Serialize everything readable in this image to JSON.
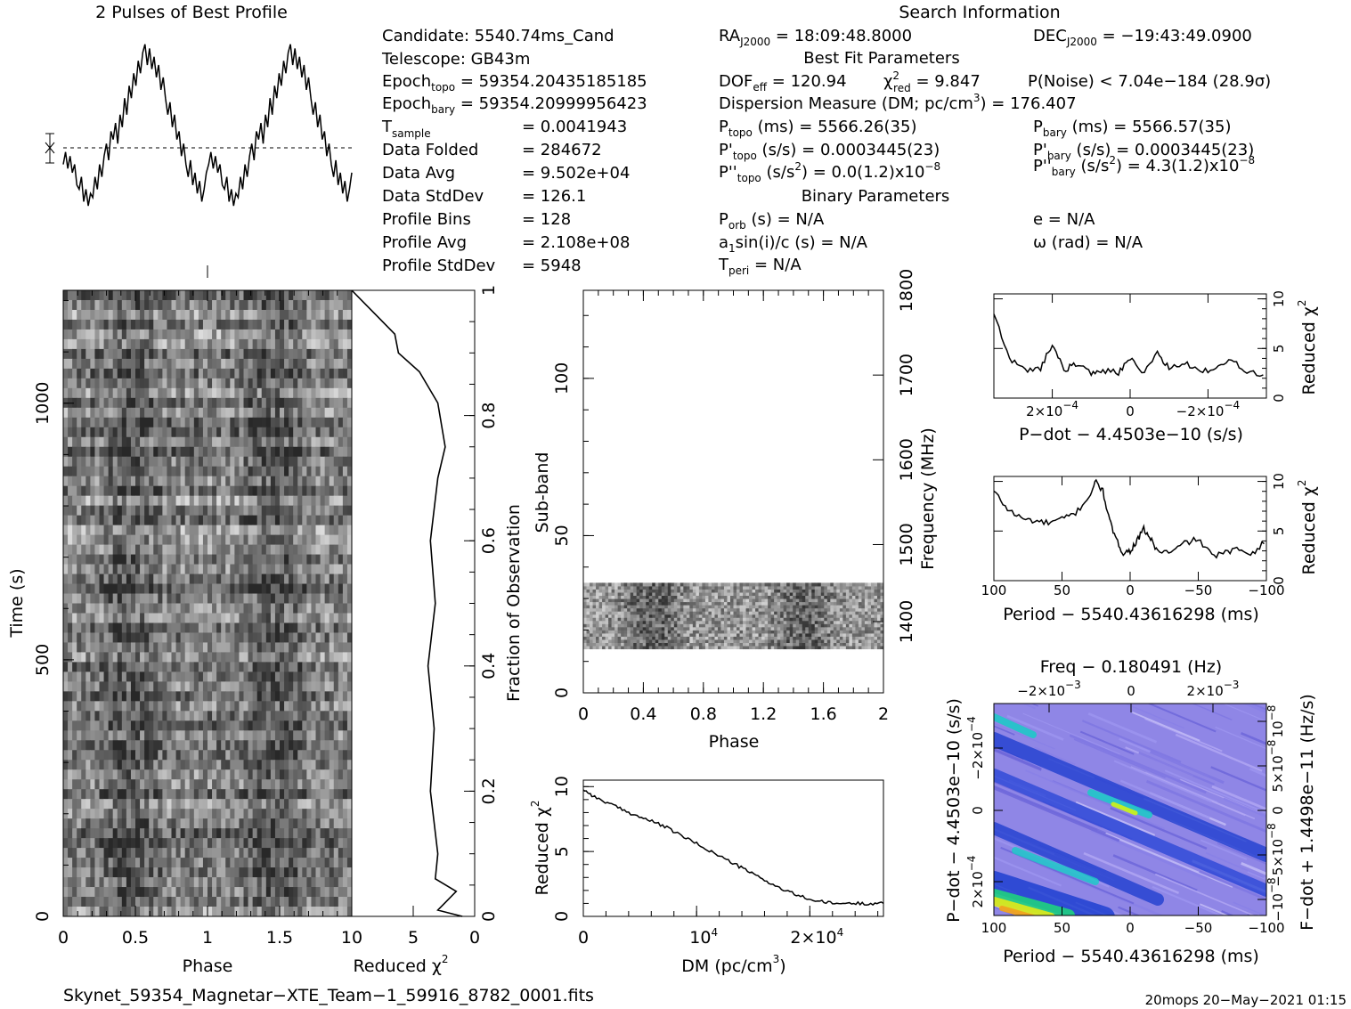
{
  "header": {
    "profile_title": "2 Pulses of Best Profile",
    "search_title": "Search Information"
  },
  "candidate_info": {
    "candidate": "Candidate:  5540.74ms_Cand",
    "telescope": "Telescope:  GB43m",
    "epoch_topo_label": "Epoch",
    "epoch_topo_sub": "topo",
    "epoch_topo_value": " = 59354.20435185185",
    "epoch_bary_label": "Epoch",
    "epoch_bary_sub": "bary",
    "epoch_bary_value": " = 59354.20999956423",
    "tsample_label": "T",
    "tsample_sub": "sample",
    "tsample_value": "=  0.0041943",
    "data_folded_label": "Data Folded",
    "data_folded_value": "=  284672",
    "data_avg_label": "Data Avg",
    "data_avg_value": "=  9.502e+04",
    "data_stddev_label": "Data StdDev",
    "data_stddev_value": "=  126.1",
    "profile_bins_label": "Profile Bins",
    "profile_bins_value": "=  128",
    "profile_avg_label": "Profile Avg",
    "profile_avg_value": "=  2.108e+08",
    "profile_stddev_label": "Profile StdDev",
    "profile_stddev_value": "=  5948"
  },
  "search_info": {
    "ra_label": "RA",
    "ra_sub": "J2000",
    "ra_value": " = 18:09:48.8000",
    "dec_label": "DEC",
    "dec_sub": "J2000",
    "dec_value": " = −19:43:49.0900",
    "best_fit_title": "Best Fit Parameters",
    "dof_label": "DOF",
    "dof_sub": "eff",
    "dof_value": " = 120.94",
    "chi_label": "χ",
    "chi_sup": "2",
    "chi_sub": "red",
    "chi_value": " = 9.847",
    "pnoise": "P(Noise) < 7.04e−184  (28.9σ)",
    "dm_line": "Dispersion Measure (DM; pc/cm",
    "dm_sup": "3",
    "dm_value": ") = 176.407",
    "ptopo_label": "P",
    "ptopo_sub": "topo",
    "ptopo_value": " (ms) =  5566.26(35)",
    "pbary_label": "P",
    "pbary_sub": "bary",
    "pbary_value": " (ms) =  5566.57(35)",
    "pdtopo_label": "P'",
    "pdtopo_sub": "topo",
    "pdtopo_value": " (s/s) =  0.0003445(23)",
    "pdbary_label": "P'",
    "pdbary_sub": "bary",
    "pdbary_value": " (s/s) =  0.0003445(23)",
    "pddtopo_label": "P''",
    "pddtopo_sub": "topo",
    "pddtopo_value": " (s/s",
    "pddtopo_sup": "2",
    "pddtopo_value2": ") = 0.0(1.2)x10",
    "pddtopo_exp": "−8",
    "pddbary_label": "P''",
    "pddbary_sub": "bary",
    "pddbary_value": " (s/s",
    "pddbary_sup": "2",
    "pddbary_value2": ") =  4.3(1.2)x10",
    "pddbary_exp": "−8",
    "binary_title": "Binary Parameters",
    "porb_label": "P",
    "porb_sub": "orb",
    "porb_value": " (s) = N/A",
    "ecc": "e = N/A",
    "a1sini_label": "a",
    "a1sini_sub": "1",
    "a1sini_value": "sin(i)/c (s) = N/A",
    "omega": "ω (rad) = N/A",
    "tperi_label": "T",
    "tperi_sub": "peri",
    "tperi_value": " = N/A"
  },
  "footer": {
    "filename": "Skynet_59354_Magnetar−XTE_Team−1_59916_8782_0001.fits",
    "stamp": "20mops 20−May−2021 01:15"
  },
  "colors": {
    "axis": "#000000",
    "background": "#ffffff"
  },
  "chart_data": [
    {
      "name": "profile",
      "type": "line",
      "title": "2 Pulses of Best Profile",
      "x_range": [
        0,
        2
      ],
      "values": [
        -2.0,
        -0.5,
        -2.5,
        -1.0,
        -3.0,
        -2.0,
        -4.5,
        -5.0,
        -3.5,
        -6.5,
        -5.0,
        -7.0,
        -5.5,
        -6.0,
        -3.5,
        -5.0,
        -2.0,
        -3.5,
        -1.0,
        0.5,
        -1.5,
        2.0,
        1.0,
        3.0,
        0.5,
        4.0,
        2.5,
        6.0,
        4.0,
        7.5,
        6.0,
        9.0,
        7.5,
        10.5,
        9.0,
        11.5,
        12.5,
        10.0,
        12.0,
        9.5,
        11.0,
        8.5,
        10.0,
        7.0,
        8.5,
        6.0,
        4.0,
        5.5,
        2.5,
        4.0,
        1.0,
        2.0,
        -1.0,
        0.5,
        -2.0,
        -3.5,
        -1.5,
        -4.5,
        -3.0,
        -5.5,
        -4.0,
        -6.5,
        -5.0,
        -3.0,
        -2.0,
        -0.5,
        -2.5,
        -1.0,
        -3.0,
        -2.0,
        -4.5,
        -5.0,
        -3.5,
        -6.5,
        -5.0,
        -7.0,
        -5.5,
        -6.0,
        -3.5,
        -5.0,
        -2.0,
        -3.5,
        -1.0,
        0.5,
        -1.5,
        2.0,
        1.0,
        3.0,
        0.5,
        4.0,
        2.5,
        6.0,
        4.0,
        7.5,
        6.0,
        9.0,
        7.5,
        10.5,
        9.0,
        11.5,
        12.5,
        10.0,
        12.0,
        9.5,
        11.0,
        8.5,
        10.0,
        7.0,
        8.5,
        6.0,
        4.0,
        5.5,
        2.5,
        4.0,
        1.0,
        2.0,
        -1.0,
        0.5,
        -2.0,
        -3.5,
        -1.5,
        -4.5,
        -3.0,
        -5.5,
        -4.0,
        -6.5,
        -5.0,
        -3.0
      ]
    },
    {
      "name": "time-vs-phase",
      "type": "heatmap",
      "xlabel": "Phase",
      "ylabel": "Time (s)",
      "xlim": [
        0,
        2
      ],
      "ylim": [
        0,
        1220
      ],
      "x_ticks": [
        "0",
        "0.5",
        "1",
        "1.5"
      ],
      "y_ticks": [
        "0",
        "500",
        "1000"
      ]
    },
    {
      "name": "reduced-chi2-vs-time",
      "type": "line",
      "xlabel": "Reduced χ",
      "xlabel_sup": "2",
      "ylabel": "Fraction of Observation",
      "xlim": [
        10,
        0
      ],
      "ylim": [
        0,
        1
      ],
      "x_ticks": [
        "10",
        "5",
        "0"
      ],
      "y_ticks": [
        "0",
        "0.2",
        "0.4",
        "0.6",
        "0.8",
        "1"
      ],
      "points": [
        [
          1.0,
          0.0
        ],
        [
          3.0,
          0.01
        ],
        [
          1.5,
          0.04
        ],
        [
          3.2,
          0.06
        ],
        [
          3.0,
          0.1
        ],
        [
          3.6,
          0.2
        ],
        [
          3.3,
          0.3
        ],
        [
          3.8,
          0.4
        ],
        [
          3.2,
          0.5
        ],
        [
          3.6,
          0.6
        ],
        [
          3.0,
          0.7
        ],
        [
          2.4,
          0.75
        ],
        [
          3.0,
          0.82
        ],
        [
          4.5,
          0.87
        ],
        [
          6.2,
          0.9
        ],
        [
          6.5,
          0.93
        ],
        [
          8.0,
          0.96
        ],
        [
          9.0,
          0.98
        ],
        [
          10.0,
          1.0
        ]
      ]
    },
    {
      "name": "subband-vs-phase",
      "type": "heatmap",
      "xlabel": "Phase",
      "ylabel": "Sub-band",
      "y2label": "Frequency (MHz)",
      "xlim": [
        0,
        2
      ],
      "ylim": [
        0,
        128
      ],
      "x_ticks": [
        "0",
        "0.4",
        "0.8",
        "1.2",
        "1.6",
        "2"
      ],
      "y_ticks": [
        "0",
        "50",
        "100"
      ],
      "y2_ticks": [
        "1400",
        "1500",
        "1600",
        "1700",
        "1800"
      ],
      "band_rows": [
        14,
        35
      ]
    },
    {
      "name": "chi2-vs-dm",
      "type": "line",
      "xlabel": "DM (pc/cm",
      "xlabel_sup": "3",
      "ylabel": "Reduced χ",
      "ylabel_sup": "2",
      "xlim": [
        0,
        26500
      ],
      "ylim": [
        0,
        10.5
      ],
      "x_ticks": [
        "0",
        "10",
        "2×10"
      ],
      "x_tick_exp": "4",
      "y_ticks": [
        "0",
        "5",
        "10"
      ],
      "points": [
        [
          0,
          9.8
        ],
        [
          1000,
          9.2
        ],
        [
          2500,
          8.6
        ],
        [
          4000,
          8.0
        ],
        [
          5500,
          7.5
        ],
        [
          7000,
          7.0
        ],
        [
          8500,
          6.3
        ],
        [
          10000,
          5.6
        ],
        [
          11500,
          4.9
        ],
        [
          13000,
          4.2
        ],
        [
          14500,
          3.5
        ],
        [
          16000,
          2.8
        ],
        [
          17500,
          2.1
        ],
        [
          19000,
          1.6
        ],
        [
          20500,
          1.2
        ],
        [
          22000,
          1.0
        ],
        [
          23500,
          1.0
        ],
        [
          25000,
          1.0
        ],
        [
          26500,
          1.0
        ]
      ]
    },
    {
      "name": "chi2-vs-pdot",
      "type": "line",
      "xlabel": "P−dot − 4.4503e−10 (s/s)",
      "ylabel": "Reduced χ",
      "ylabel_sup": "2",
      "xlim": [
        0.00035,
        -0.00035
      ],
      "ylim": [
        0,
        10.5
      ],
      "x_ticks": [
        "2×10",
        "0",
        "−2×10"
      ],
      "x_tick_exp": "−4",
      "y_ticks": [
        "0",
        "5",
        "10"
      ],
      "points": [
        [
          0.00035,
          8.5
        ],
        [
          0.00031,
          4.0
        ],
        [
          0.00027,
          2.8
        ],
        [
          0.00023,
          3.0
        ],
        [
          0.0002,
          5.5
        ],
        [
          0.00017,
          2.8
        ],
        [
          0.00014,
          3.5
        ],
        [
          0.0001,
          2.5
        ],
        [
          7e-05,
          2.8
        ],
        [
          3e-05,
          2.6
        ],
        [
          0.0,
          4.0
        ],
        [
          -3e-05,
          2.5
        ],
        [
          -7e-05,
          4.5
        ],
        [
          -0.0001,
          3.0
        ],
        [
          -0.00014,
          3.5
        ],
        [
          -0.00018,
          2.6
        ],
        [
          -0.00022,
          3.0
        ],
        [
          -0.00026,
          3.8
        ],
        [
          -0.0003,
          2.8
        ],
        [
          -0.00035,
          2.2
        ]
      ]
    },
    {
      "name": "chi2-vs-period",
      "type": "line",
      "xlabel": "Period − 5540.43616298 (ms)",
      "ylabel": "Reduced χ",
      "ylabel_sup": "2",
      "xlim": [
        100,
        -100
      ],
      "ylim": [
        0,
        10.5
      ],
      "x_ticks": [
        "100",
        "50",
        "0",
        "−50",
        "−100"
      ],
      "y_ticks": [
        "0",
        "5",
        "10"
      ],
      "points": [
        [
          100,
          9.0
        ],
        [
          90,
          7.2
        ],
        [
          80,
          6.3
        ],
        [
          70,
          6.0
        ],
        [
          60,
          5.8
        ],
        [
          50,
          6.2
        ],
        [
          40,
          6.8
        ],
        [
          30,
          8.5
        ],
        [
          25,
          10.0
        ],
        [
          20,
          9.0
        ],
        [
          15,
          6.0
        ],
        [
          10,
          4.0
        ],
        [
          5,
          2.8
        ],
        [
          0,
          3.0
        ],
        [
          -5,
          4.0
        ],
        [
          -10,
          5.2
        ],
        [
          -15,
          4.2
        ],
        [
          -20,
          3.0
        ],
        [
          -30,
          2.8
        ],
        [
          -40,
          3.8
        ],
        [
          -50,
          4.2
        ],
        [
          -60,
          2.5
        ],
        [
          -70,
          2.8
        ],
        [
          -80,
          3.2
        ],
        [
          -90,
          2.8
        ],
        [
          -100,
          4.0
        ]
      ]
    },
    {
      "name": "pdot-vs-period",
      "type": "heatmap",
      "title": "Freq − 0.180491 (Hz)",
      "xlabel": "Period − 5540.43616298 (ms)",
      "ylabel": "P−dot − 4.4503e−10 (s/s)",
      "y2label": "F−dot + 1.4498e−11 (Hz/s)",
      "xlim": [
        100,
        -100
      ],
      "x_ticks": [
        "100",
        "50",
        "0",
        "−50",
        "−100"
      ],
      "top_ticks": [
        "−2×10",
        "0",
        "2×10"
      ],
      "top_tick_exp": "−3",
      "y_ticks": [
        "−2×10",
        "0",
        "2×10"
      ],
      "y_tick_exp": "−4",
      "y2_ticks": [
        "10",
        "5×10",
        "0",
        "−5×10",
        "−10"
      ],
      "y2_tick_exp": "−8"
    }
  ]
}
